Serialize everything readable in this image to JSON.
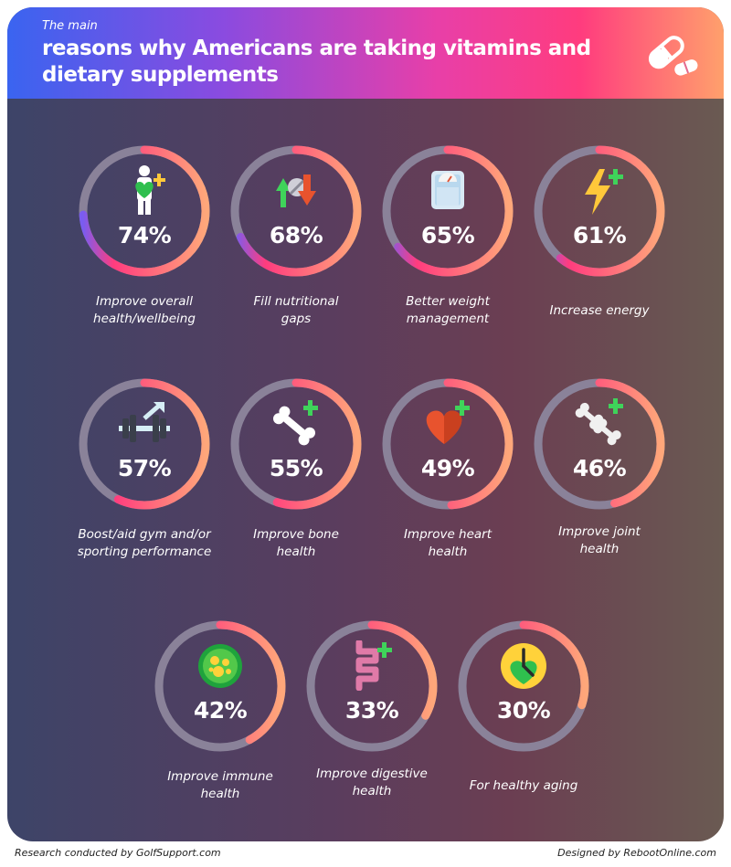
{
  "header": {
    "subtitle": "The main",
    "title": "reasons why Americans are taking vitamins and dietary supplements"
  },
  "chart_data": {
    "type": "donut-grid",
    "title": "The main reasons why Americans are taking vitamins and dietary supplements",
    "unit": "%",
    "categories": [
      "Improve overall health/wellbeing",
      "Fill nutritional gaps",
      "Better weight management",
      "Increase energy",
      "Boost/aid gym and/or sporting performance",
      "Improve bone health",
      "Improve heart health",
      "Improve joint health",
      "Improve immune health",
      "Improve digestive health",
      "For healthy aging"
    ],
    "values": [
      74,
      68,
      65,
      61,
      57,
      55,
      49,
      46,
      42,
      33,
      30
    ],
    "items": [
      {
        "label1": "Improve overall",
        "label2": "health/wellbeing",
        "value": 74,
        "value_text": "74%",
        "icon": "heart-person-icon"
      },
      {
        "label1": "Fill nutritional",
        "label2": "gaps",
        "value": 68,
        "value_text": "68%",
        "icon": "nutrition-arrows-icon"
      },
      {
        "label1": "Better weight",
        "label2": "management",
        "value": 65,
        "value_text": "65%",
        "icon": "scale-icon"
      },
      {
        "label1": "Increase energy",
        "label2": "",
        "value": 61,
        "value_text": "61%",
        "icon": "lightning-icon"
      },
      {
        "label1": "Boost/aid gym and/or",
        "label2": "sporting performance",
        "value": 57,
        "value_text": "57%",
        "icon": "barbell-icon"
      },
      {
        "label1": "Improve bone",
        "label2": "health",
        "value": 55,
        "value_text": "55%",
        "icon": "bone-icon"
      },
      {
        "label1": "Improve heart",
        "label2": "health",
        "value": 49,
        "value_text": "49%",
        "icon": "heart-icon"
      },
      {
        "label1": "Improve joint",
        "label2": "health",
        "value": 46,
        "value_text": "46%",
        "icon": "joint-icon"
      },
      {
        "label1": "Improve immune",
        "label2": "health",
        "value": 42,
        "value_text": "42%",
        "icon": "cell-icon"
      },
      {
        "label1": "Improve digestive",
        "label2": "health",
        "value": 33,
        "value_text": "33%",
        "icon": "intestine-icon"
      },
      {
        "label1": "For healthy aging",
        "label2": "",
        "value": 30,
        "value_text": "30%",
        "icon": "clock-heart-icon"
      }
    ]
  },
  "colors": {
    "ring_track": "#8a8299",
    "ring_start": "#7a5cf0",
    "ring_mid": "#ff3c7e",
    "ring_end": "#ffa77a",
    "plus_green": "#3fd35a",
    "heart_green": "#2fbf4e"
  },
  "footer": {
    "left": "Research conducted by GolfSupport.com",
    "right": "Designed by RebootOnline.com"
  }
}
